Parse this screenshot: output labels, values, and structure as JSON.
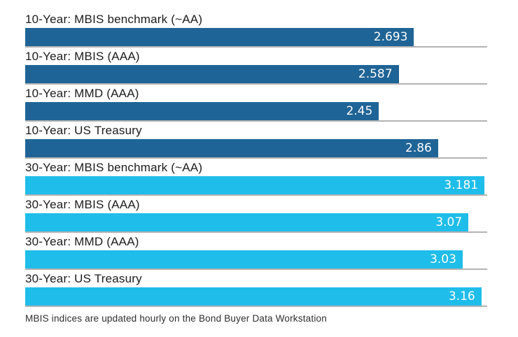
{
  "chart_data": {
    "type": "bar",
    "orientation": "horizontal",
    "title": "",
    "xlabel": "",
    "ylabel": "",
    "xlim": [
      0,
      3.2
    ],
    "grid": "row-baselines-only",
    "value_labels": "inside-right-end",
    "categories": [
      "10-Year: MBIS benchmark (~AA)",
      "10-Year: MBIS (AAA)",
      "10-Year: MMD (AAA)",
      "10-Year: US Treasury",
      "30-Year: MBIS benchmark (~AA)",
      "30-Year: MBIS (AAA)",
      "30-Year: MMD (AAA)",
      "30-Year: US Treasury"
    ],
    "values": [
      2.693,
      2.587,
      2.45,
      2.86,
      3.181,
      3.07,
      3.03,
      3.16
    ],
    "series": [
      {
        "name": "10-Year",
        "color": "#1F6496",
        "category_indices": [
          0,
          1,
          2,
          3
        ]
      },
      {
        "name": "30-Year",
        "color": "#1FBDE9",
        "category_indices": [
          4,
          5,
          6,
          7
        ]
      }
    ],
    "annotations": [
      "MBIS indices are updated hourly on the Bond Buyer Data Workstation"
    ]
  },
  "chart": {
    "xmax": 3.2,
    "colors": {
      "dark": "#1F6496",
      "light": "#1FBDE9",
      "baseline": "#b3b3b3",
      "label_text": "#1c1c1c",
      "value_text": "#fdfdfd"
    },
    "rows": [
      {
        "label": "10-Year: MBIS benchmark (~AA)",
        "value": 2.693,
        "value_label": "2.693",
        "color": "dark"
      },
      {
        "label": "10-Year: MBIS (AAA)",
        "value": 2.587,
        "value_label": "2.587",
        "color": "dark"
      },
      {
        "label": "10-Year: MMD (AAA)",
        "value": 2.45,
        "value_label": "2.45",
        "color": "dark"
      },
      {
        "label": "10-Year: US Treasury",
        "value": 2.86,
        "value_label": "2.86",
        "color": "dark"
      },
      {
        "label": "30-Year: MBIS benchmark (~AA)",
        "value": 3.181,
        "value_label": "3.181",
        "color": "light"
      },
      {
        "label": "30-Year: MBIS (AAA)",
        "value": 3.07,
        "value_label": "3.07",
        "color": "light"
      },
      {
        "label": "30-Year: MMD (AAA)",
        "value": 3.03,
        "value_label": "3.03",
        "color": "light"
      },
      {
        "label": "30-Year: US Treasury",
        "value": 3.16,
        "value_label": "3.16",
        "color": "light"
      }
    ],
    "footnote": "MBIS indices are updated hourly on the Bond Buyer Data Workstation"
  }
}
